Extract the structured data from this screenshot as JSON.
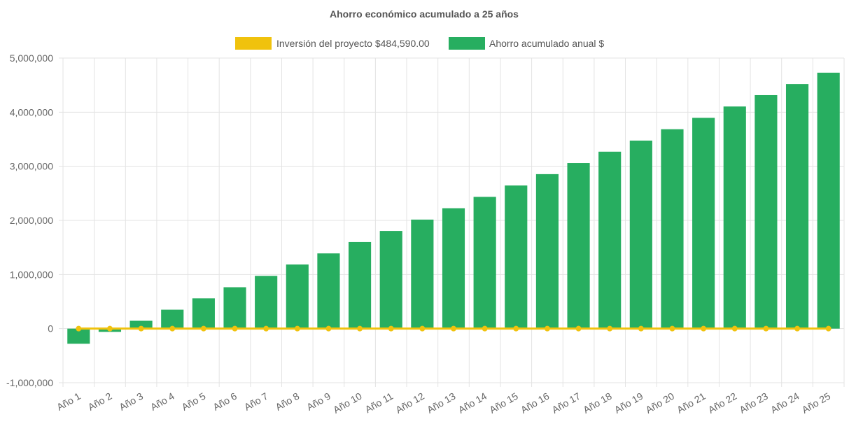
{
  "chart_data": {
    "type": "bar",
    "title": "Ahorro económico acumulado a 25 años",
    "categories": [
      "Año 1",
      "Año 2",
      "Año 3",
      "Año 4",
      "Año 5",
      "Año 6",
      "Año 7",
      "Año 8",
      "Año 9",
      "Año 10",
      "Año 11",
      "Año 12",
      "Año 13",
      "Año 14",
      "Año 15",
      "Año 16",
      "Año 17",
      "Año 18",
      "Año 19",
      "Año 20",
      "Año 21",
      "Año 22",
      "Año 23",
      "Año 24",
      "Año 25"
    ],
    "series": [
      {
        "name": "Inversión del proyecto $484,590.00",
        "kind": "line",
        "color": "#f0c20d",
        "values": [
          0,
          0,
          0,
          0,
          0,
          0,
          0,
          0,
          0,
          0,
          0,
          0,
          0,
          0,
          0,
          0,
          0,
          0,
          0,
          0,
          0,
          0,
          0,
          0,
          0
        ]
      },
      {
        "name": "Ahorro acumulado anual $",
        "kind": "bar",
        "color": "#27ae60",
        "values": [
          -280000,
          -60000,
          145000,
          350000,
          560000,
          765000,
          975000,
          1185000,
          1390000,
          1600000,
          1805000,
          2015000,
          2225000,
          2435000,
          2645000,
          2855000,
          3060000,
          3270000,
          3475000,
          3685000,
          3895000,
          4105000,
          4315000,
          4520000,
          4730000
        ]
      }
    ],
    "y_ticks": [
      "5,000,000",
      "4,000,000",
      "3,000,000",
      "2,000,000",
      "1,000,000",
      "0",
      "-1,000,000"
    ],
    "y_tick_values": [
      5000000,
      4000000,
      3000000,
      2000000,
      1000000,
      0,
      -1000000
    ],
    "ylim": [
      -1000000,
      5000000
    ],
    "xlabel": "",
    "ylabel": "",
    "grid": true,
    "legend_position": "top-center"
  }
}
